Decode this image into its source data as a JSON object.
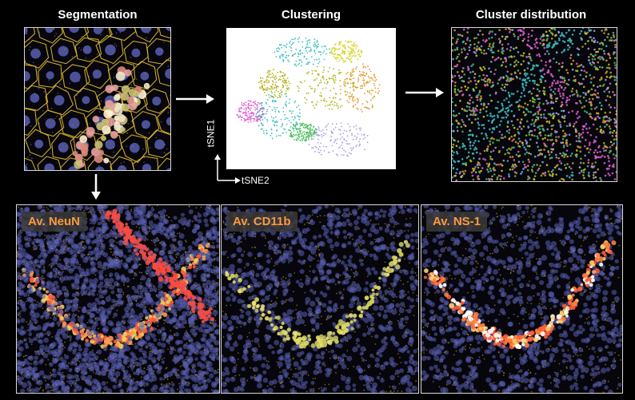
{
  "titles": {
    "segmentation": "Segmentation",
    "clustering": "Clustering",
    "cluster_distribution": "Cluster distribution"
  },
  "tsne_axes": {
    "y": "tSNE1",
    "x": "tSNE2"
  },
  "bottom_panels": [
    {
      "label": "Av. NeuN"
    },
    {
      "label": "Av. CD11b"
    },
    {
      "label": "Av. NS-1"
    }
  ],
  "colors": {
    "background": "#000000",
    "title_text": "#ffffff",
    "badge_text": "#ff9a3c",
    "segmentation_outline": "#e0b92a",
    "nucleus": "#5a5fb0",
    "cluster_palette": [
      "#3fbfbf",
      "#b5b520",
      "#e39a2a",
      "#e060d0",
      "#a8a0e8",
      "#4ac05a",
      "#d6d630"
    ]
  }
}
